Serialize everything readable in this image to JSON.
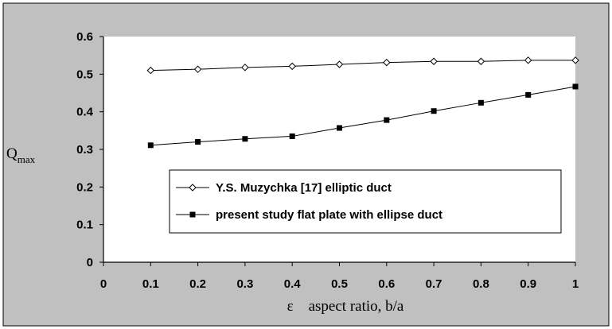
{
  "chart_data": {
    "type": "line",
    "xlabel": "ε    aspect ratio, b/a",
    "ylabel": "Q",
    "ylabel_sub": "max",
    "xlim": [
      0,
      1
    ],
    "ylim": [
      0,
      0.6
    ],
    "xticks": [
      "0",
      "0.1",
      "0.2",
      "0.3",
      "0.4",
      "0.5",
      "0.6",
      "0.7",
      "0.8",
      "0.9",
      "1"
    ],
    "yticks": [
      "0",
      "0.1",
      "0.2",
      "0.3",
      "0.4",
      "0.5",
      "0.6"
    ],
    "grid": false,
    "legend_position": "lower-right, inside plot",
    "colors": {
      "frame_background": "#c0c0c0",
      "plot_background": "#ffffff",
      "series_line": "#000000"
    },
    "series": [
      {
        "name": "Y.S. Muzychka [17] elliptic duct",
        "marker": "open-diamond",
        "x": [
          0.1,
          0.2,
          0.3,
          0.4,
          0.5,
          0.6,
          0.7,
          0.8,
          0.9,
          1.0
        ],
        "y": [
          0.51,
          0.513,
          0.518,
          0.521,
          0.526,
          0.531,
          0.534,
          0.534,
          0.537,
          0.537
        ]
      },
      {
        "name": "present study flat plate with ellipse duct",
        "marker": "filled-square",
        "x": [
          0.1,
          0.2,
          0.3,
          0.4,
          0.5,
          0.6,
          0.7,
          0.8,
          0.9,
          1.0
        ],
        "y": [
          0.311,
          0.32,
          0.328,
          0.335,
          0.357,
          0.378,
          0.402,
          0.424,
          0.445,
          0.467
        ]
      }
    ]
  }
}
